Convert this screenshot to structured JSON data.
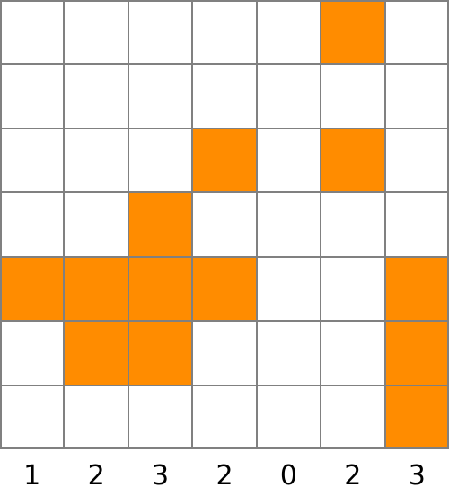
{
  "puzzle": {
    "rows": 7,
    "cols": 7,
    "cells": [
      [
        0,
        0,
        0,
        0,
        0,
        1,
        0
      ],
      [
        0,
        0,
        0,
        0,
        0,
        0,
        0
      ],
      [
        0,
        0,
        0,
        1,
        0,
        1,
        0
      ],
      [
        0,
        0,
        1,
        0,
        0,
        0,
        0
      ],
      [
        1,
        1,
        1,
        1,
        0,
        0,
        1
      ],
      [
        0,
        1,
        1,
        0,
        0,
        0,
        1
      ],
      [
        0,
        0,
        0,
        0,
        0,
        0,
        1
      ]
    ],
    "column_clues": [
      "1",
      "2",
      "3",
      "2",
      "0",
      "2",
      "3"
    ]
  },
  "colors": {
    "filled": "#ff8c00",
    "empty": "#ffffff",
    "grid": "#808080",
    "clue_text": "#000000"
  }
}
